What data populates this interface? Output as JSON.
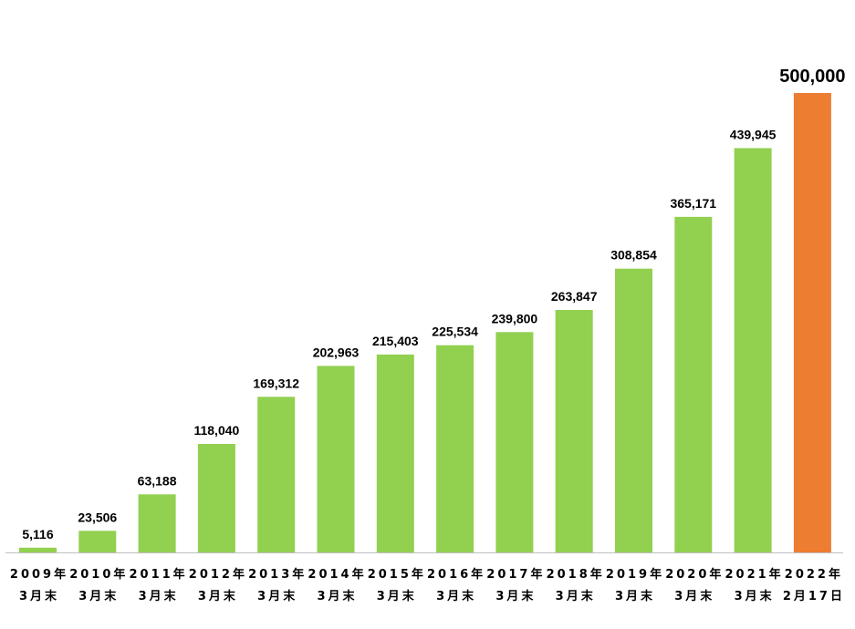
{
  "chart_data": {
    "type": "bar",
    "title": "",
    "xlabel": "",
    "ylabel": "",
    "categories": [
      [
        "2009年",
        "3月末"
      ],
      [
        "2010年",
        "3月末"
      ],
      [
        "2011年",
        "3月末"
      ],
      [
        "2012年",
        "3月末"
      ],
      [
        "2013年",
        "3月末"
      ],
      [
        "2014年",
        "3月末"
      ],
      [
        "2015年",
        "3月末"
      ],
      [
        "2016年",
        "3月末"
      ],
      [
        "2017年",
        "3月末"
      ],
      [
        "2018年",
        "3月末"
      ],
      [
        "2019年",
        "3月末"
      ],
      [
        "2020年",
        "3月末"
      ],
      [
        "2021年",
        "3月末"
      ],
      [
        "2022年",
        "2月17日"
      ]
    ],
    "values": [
      5116,
      23506,
      63188,
      118040,
      169312,
      202963,
      215403,
      225534,
      239800,
      263847,
      308854,
      365171,
      439945,
      500000
    ],
    "value_labels": [
      "5,116",
      "23,506",
      "63,188",
      "118,040",
      "169,312",
      "202,963",
      "215,403",
      "225,534",
      "239,800",
      "263,847",
      "308,854",
      "365,171",
      "439,945",
      "500,000"
    ],
    "ylim": [
      0,
      500000
    ],
    "grid": false,
    "legend": "none",
    "colors": {
      "bar": "#92D050",
      "highlight_bar": "#ED7D31",
      "highlight_label": "#ED7D31",
      "axis": "#BFBFBF"
    },
    "highlight_index": 13
  }
}
